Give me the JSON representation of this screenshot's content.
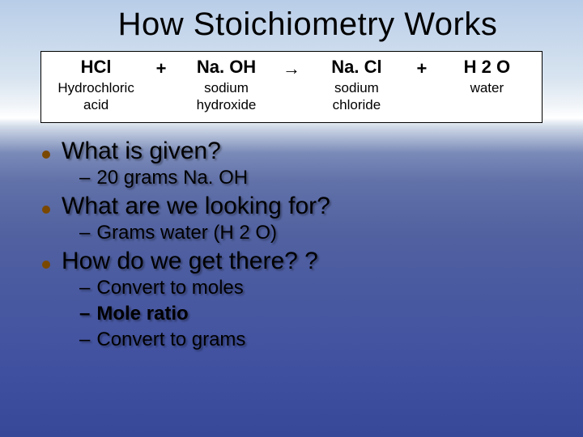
{
  "title": "How Stoichiometry Works",
  "equation": {
    "items": [
      {
        "formula": "HCl",
        "label": "Hydrochloric\nacid",
        "bold": true
      },
      {
        "formula": "+",
        "label": "",
        "op": true
      },
      {
        "formula": "Na. OH",
        "label": "sodium\nhydroxide",
        "bold": true
      },
      {
        "formula": "→",
        "label": "",
        "op": true
      },
      {
        "formula": "Na. Cl",
        "label": "sodium\nchloride",
        "bold": true
      },
      {
        "formula": "+",
        "label": "",
        "op": true
      },
      {
        "formula": "H 2 O",
        "label": "water",
        "bold": true
      }
    ]
  },
  "bullets": [
    {
      "text": "What is given?",
      "subs": [
        {
          "text": "20 grams Na. OH",
          "bold": false
        }
      ]
    },
    {
      "text": "What are we looking for?",
      "subs": [
        {
          "text": "Grams water (H 2 O)",
          "bold": false
        }
      ]
    },
    {
      "text": "How do we get there? ?",
      "subs": [
        {
          "text": "Convert to moles",
          "bold": false
        },
        {
          "text": "Mole ratio",
          "bold": true
        },
        {
          "text": "Convert to grams",
          "bold": false
        }
      ]
    }
  ],
  "colors": {
    "bullet_dot": "#7a4800",
    "text": "#000000",
    "box_bg": "#ffffff"
  }
}
